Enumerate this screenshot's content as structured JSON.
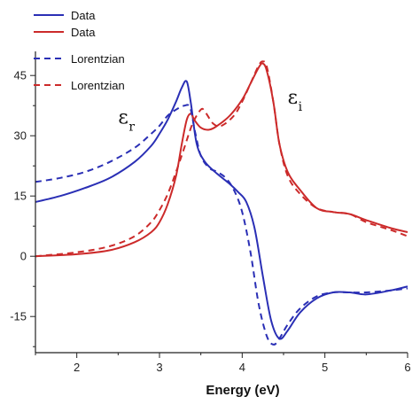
{
  "chart_data": {
    "type": "line",
    "title": "",
    "xlabel": "Energy (eV)",
    "ylabel": "",
    "xlim": [
      1.5,
      6.0
    ],
    "ylim": [
      -24,
      51
    ],
    "x_ticks": [
      2,
      3,
      4,
      5,
      6
    ],
    "y_ticks": [
      -15,
      0,
      15,
      30,
      45
    ],
    "grid": false,
    "legend": {
      "placement": "top-left",
      "entries": [
        "Data",
        "Data",
        "Lorentzian",
        "Lorentzian"
      ]
    },
    "annotations": [
      {
        "symbol": "ε",
        "subscript": "r",
        "x": 2.5,
        "y": 33
      },
      {
        "symbol": "ε",
        "subscript": "i",
        "x": 4.55,
        "y": 38
      }
    ],
    "series": [
      {
        "name": "Data",
        "color": "#2a2fb5",
        "style": "solid",
        "x": [
          1.5,
          1.8,
          2.1,
          2.4,
          2.7,
          2.9,
          3.0,
          3.1,
          3.2,
          3.27,
          3.33,
          3.38,
          3.45,
          3.55,
          3.7,
          3.85,
          3.95,
          4.05,
          4.15,
          4.25,
          4.35,
          4.45,
          4.55,
          4.7,
          4.9,
          5.1,
          5.3,
          5.5,
          5.8,
          6.0
        ],
        "y": [
          13.5,
          15,
          17,
          19.5,
          23.5,
          27.5,
          30.5,
          34,
          38.5,
          42,
          43.5,
          38,
          28,
          23.5,
          20.5,
          18,
          16,
          13.5,
          7,
          -5,
          -16,
          -20.5,
          -18.5,
          -14,
          -10.5,
          -9,
          -9,
          -9.5,
          -8.5,
          -7.5
        ]
      },
      {
        "name": "Data",
        "color": "#cc2a2a",
        "style": "solid",
        "x": [
          1.5,
          2.0,
          2.4,
          2.7,
          2.9,
          3.0,
          3.1,
          3.2,
          3.27,
          3.33,
          3.38,
          3.42,
          3.5,
          3.6,
          3.7,
          3.85,
          4.0,
          4.1,
          4.2,
          4.25,
          4.3,
          4.38,
          4.45,
          4.55,
          4.7,
          4.9,
          5.1,
          5.3,
          5.5,
          5.8,
          6.0
        ],
        "y": [
          0,
          0.5,
          1.5,
          3.5,
          6,
          8.5,
          13,
          20,
          28,
          34,
          35.5,
          34,
          32,
          31.5,
          32.5,
          35,
          39,
          43,
          47,
          48,
          46,
          38,
          28,
          21,
          16.5,
          12,
          11,
          10.5,
          9,
          7,
          6
        ]
      },
      {
        "name": "Lorentzian",
        "color": "#2a2fb5",
        "style": "dashed",
        "x": [
          1.5,
          1.8,
          2.1,
          2.4,
          2.7,
          2.9,
          3.0,
          3.1,
          3.2,
          3.3,
          3.37,
          3.43,
          3.5,
          3.6,
          3.7,
          3.8,
          3.9,
          4.0,
          4.1,
          4.2,
          4.3,
          4.38,
          4.45,
          4.55,
          4.7,
          4.9,
          5.1,
          5.3,
          5.5,
          5.8,
          6.0
        ],
        "y": [
          18.5,
          19.5,
          21,
          23.5,
          27,
          30.5,
          32.5,
          35,
          36.5,
          37.5,
          37,
          31,
          25,
          22,
          21,
          19.5,
          16.5,
          11,
          1,
          -12,
          -20,
          -22,
          -20.5,
          -17,
          -13,
          -10,
          -9,
          -9,
          -9,
          -8.5,
          -8
        ]
      },
      {
        "name": "Lorentzian",
        "color": "#cc2a2a",
        "style": "dashed",
        "x": [
          1.5,
          2.0,
          2.4,
          2.7,
          2.9,
          3.0,
          3.1,
          3.2,
          3.3,
          3.4,
          3.5,
          3.55,
          3.65,
          3.75,
          3.9,
          4.0,
          4.1,
          4.2,
          4.25,
          4.3,
          4.38,
          4.45,
          4.55,
          4.7,
          4.9,
          5.1,
          5.3,
          5.5,
          5.8,
          6.0
        ],
        "y": [
          0,
          1,
          2.5,
          5,
          8.5,
          11.5,
          15.5,
          21,
          27,
          33,
          36.5,
          36,
          33,
          32.5,
          35,
          38.5,
          43,
          47.5,
          48.5,
          47,
          38,
          28,
          20,
          15.5,
          12,
          11,
          10.5,
          8.5,
          6.5,
          5
        ]
      }
    ]
  }
}
